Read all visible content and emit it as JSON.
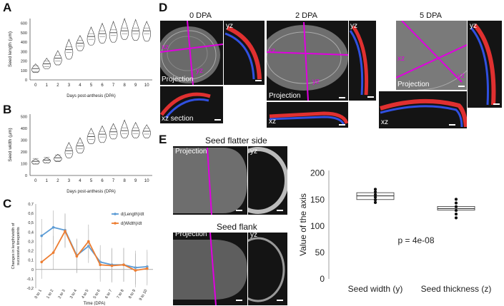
{
  "panels": {
    "A": "A",
    "B": "B",
    "C": "C",
    "D": "D",
    "E": "E"
  },
  "chart_data": [
    {
      "id": "A",
      "type": "box",
      "categories": [
        "0",
        "1",
        "2",
        "3",
        "4",
        "5",
        "6",
        "7",
        "8",
        "9",
        "10"
      ],
      "medians": [
        120,
        170,
        230,
        320,
        390,
        460,
        490,
        500,
        520,
        520,
        520
      ],
      "lows": [
        80,
        120,
        160,
        220,
        310,
        370,
        390,
        400,
        430,
        420,
        410
      ],
      "highs": [
        170,
        230,
        310,
        430,
        470,
        560,
        600,
        620,
        650,
        640,
        620
      ],
      "ylabel": "Seed length (µm)",
      "xlabel": "Days post-anthesis (DPA)",
      "yticks": [
        "0",
        "100",
        "200",
        "300",
        "400",
        "500",
        "600"
      ],
      "ylim": [
        0,
        650
      ]
    },
    {
      "id": "B",
      "type": "box",
      "categories": [
        "0",
        "1",
        "2",
        "3",
        "4",
        "5",
        "6",
        "7",
        "8",
        "9",
        "10"
      ],
      "medians": [
        120,
        130,
        150,
        210,
        250,
        330,
        350,
        370,
        380,
        380,
        375
      ],
      "lows": [
        100,
        110,
        120,
        150,
        190,
        270,
        280,
        310,
        320,
        320,
        320
      ],
      "highs": [
        140,
        150,
        180,
        280,
        320,
        400,
        420,
        440,
        470,
        450,
        430
      ],
      "ylabel": "Seed width (µm)",
      "xlabel": "Days post-anthesis (DPA)",
      "yticks": [
        "0",
        "100",
        "200",
        "300",
        "400",
        "500"
      ],
      "ylim": [
        0,
        520
      ]
    },
    {
      "id": "C",
      "type": "line",
      "categories": [
        "0 to 1",
        "1 to 2",
        "2 to 3",
        "3 to 4",
        "4 to 5",
        "5 to 6",
        "6 to 7",
        "7 to 8",
        "8 to 9",
        "9 to 10"
      ],
      "series": [
        {
          "name": "d(Length)/dt",
          "values": [
            0.36,
            0.45,
            0.42,
            0.15,
            0.25,
            0.08,
            0.05,
            0.05,
            0.02,
            0.03
          ],
          "color": "#5b9bd5"
        },
        {
          "name": "d(Width)/dt",
          "values": [
            0.08,
            0.18,
            0.41,
            0.14,
            0.3,
            0.05,
            0.04,
            0.05,
            -0.01,
            0.01
          ],
          "color": "#ed7d31"
        }
      ],
      "ylabel": "Changes in length/width of successive timepoints",
      "xlabel": "Time (DPA)",
      "yticks": [
        "0,7",
        "0,6",
        "0,5",
        "0,4",
        "0,3",
        "0,2",
        "0,1",
        "0",
        "-0,1",
        "-0,2"
      ],
      "ylim": [
        -0.2,
        0.7
      ]
    },
    {
      "id": "E",
      "type": "box",
      "categories": [
        "Seed width (y)",
        "Seed thickness (z)"
      ],
      "medians": [
        157,
        133
      ],
      "q1": [
        150,
        130
      ],
      "q3": [
        163,
        137
      ],
      "ylabel": "Value of the axis",
      "yticks": [
        "0",
        "50",
        "100",
        "150",
        "200"
      ],
      "ylim": [
        0,
        205
      ],
      "annotation": "p = 4e-08"
    }
  ],
  "D": {
    "t0": "0 DPA",
    "t2": "2 DPA",
    "t5": "5 DPA",
    "proj": "Projection",
    "yz": "yz",
    "xz": "xz",
    "xzsec": "xz section"
  },
  "E": {
    "flat": "Seed flatter side",
    "flank": "Seed flank",
    "proj": "Projection",
    "yz": "yz"
  }
}
